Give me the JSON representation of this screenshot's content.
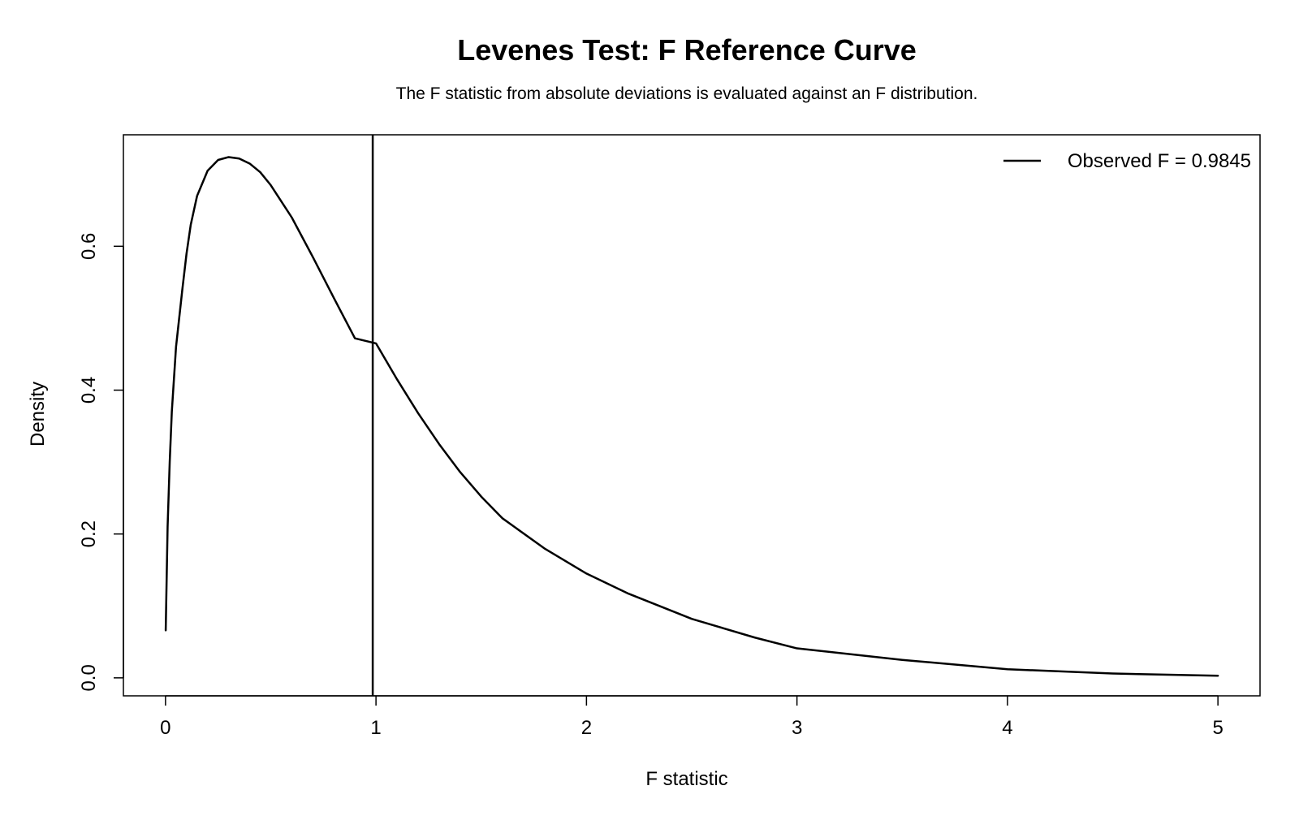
{
  "chart_data": {
    "type": "line",
    "title": "Levenes Test: F Reference Curve",
    "subtitle": "The F statistic from absolute deviations is evaluated against an F distribution.",
    "xlabel": "F statistic",
    "ylabel": "Density",
    "xlim": [
      -0.2,
      5.2
    ],
    "ylim": [
      -0.025,
      0.755
    ],
    "x_ticks": [
      0,
      1,
      2,
      3,
      4,
      5
    ],
    "y_ticks": [
      0.0,
      0.2,
      0.4,
      0.6
    ],
    "x_tick_labels": [
      "0",
      "1",
      "2",
      "3",
      "4",
      "5"
    ],
    "y_tick_labels": [
      "0.0",
      "0.2",
      "0.4",
      "0.6"
    ],
    "grid": false,
    "legend": {
      "position": "top-right",
      "label": "Observed F = 0.9845"
    },
    "observed_f": 0.9845,
    "series": [
      {
        "x": [
          0.001,
          0.01,
          0.02,
          0.03,
          0.05,
          0.08,
          0.1,
          0.12,
          0.15,
          0.2,
          0.25,
          0.3,
          0.35,
          0.4,
          0.45,
          0.5,
          0.6,
          0.7,
          0.8,
          0.9,
          1.0,
          1.1,
          1.2,
          1.3,
          1.4,
          1.5,
          1.6,
          1.8,
          2.0,
          2.2,
          2.5,
          2.8,
          3.0,
          3.5,
          4.0,
          4.5,
          5.0
        ],
        "values": [
          0.066,
          0.21,
          0.3,
          0.37,
          0.46,
          0.54,
          0.59,
          0.63,
          0.67,
          0.705,
          0.72,
          0.724,
          0.722,
          0.715,
          0.703,
          0.685,
          0.64,
          0.585,
          0.528,
          0.472,
          0.465,
          0.415,
          0.368,
          0.325,
          0.286,
          0.252,
          0.222,
          0.18,
          0.145,
          0.117,
          0.082,
          0.056,
          0.041,
          0.025,
          0.012,
          0.006,
          0.003
        ]
      }
    ],
    "colors": {
      "line": "#000000",
      "background": "#ffffff"
    }
  }
}
